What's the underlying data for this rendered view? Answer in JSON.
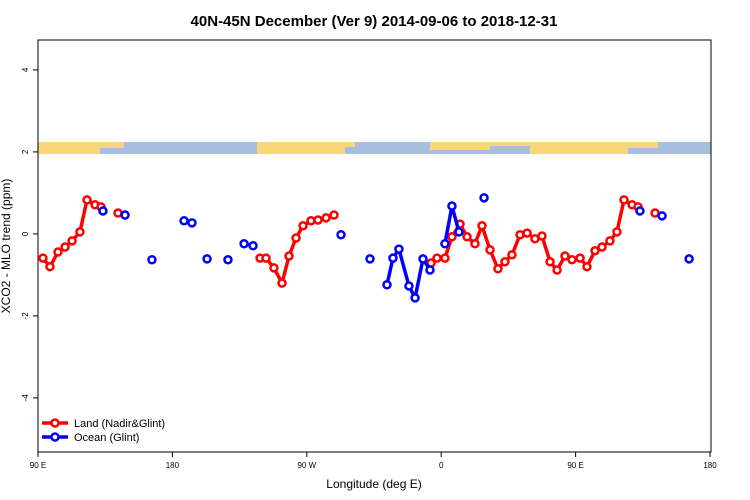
{
  "chart_data": {
    "type": "line",
    "title": "40N-45N December (Ver 9)   2014-09-06 to 2018-12-31",
    "x_label": "Longitude (deg E)",
    "y_label": "XCO2 - MLO trend (ppm)",
    "xlim": [
      90,
      540
    ],
    "ylim": [
      -5.32,
      4.73
    ],
    "xticks": [
      {
        "value": 90,
        "label": "90 E"
      },
      {
        "value": 180,
        "label": "180"
      },
      {
        "value": 270,
        "label": "90 W"
      },
      {
        "value": 360,
        "label": "0"
      },
      {
        "value": 450,
        "label": "90 E"
      },
      {
        "value": 540,
        "label": "180"
      }
    ],
    "yticks": [
      -4,
      -2,
      0,
      2,
      4
    ],
    "legend": "bottom-left",
    "series": [
      {
        "name": "Land (Nadir&Glint)",
        "color": "#ff0000",
        "x": [
          93.3,
          98.0,
          103.4,
          108.1,
          112.8,
          118.1,
          122.8,
          128.2,
          132.2,
          null,
          143.6,
          null,
          238.7,
          242.7,
          248.0,
          253.4,
          258.1,
          262.8,
          267.5,
          272.8,
          277.5,
          282.9,
          288.2,
          null,
          353.2,
          357.2,
          362.5,
          367.2,
          372.6,
          377.3,
          382.6,
          387.3,
          392.7,
          398.0,
          402.7,
          407.4,
          412.8,
          417.5,
          422.8,
          427.5,
          432.9,
          437.6,
          442.9,
          447.6,
          453.0,
          457.6,
          463.0,
          467.7,
          473.0,
          477.7,
          482.4,
          487.8,
          491.8,
          null,
          503.2
        ],
        "values": [
          -0.59,
          -0.8,
          -0.44,
          -0.32,
          -0.17,
          0.05,
          0.83,
          0.71,
          0.66,
          null,
          0.51,
          null,
          -0.59,
          -0.59,
          -0.83,
          -1.2,
          -0.54,
          -0.1,
          0.2,
          0.32,
          0.34,
          0.39,
          0.46,
          null,
          -0.71,
          -0.59,
          -0.59,
          -0.07,
          0.24,
          -0.07,
          -0.24,
          0.2,
          -0.39,
          -0.85,
          -0.68,
          -0.51,
          -0.02,
          0.02,
          -0.12,
          -0.05,
          -0.68,
          -0.88,
          -0.54,
          -0.63,
          -0.59,
          -0.8,
          -0.41,
          -0.32,
          -0.17,
          0.05,
          0.83,
          0.71,
          0.66,
          null,
          0.51
        ]
      },
      {
        "name": "Ocean (Glint)",
        "color": "#0000ff",
        "x": [
          133.5,
          null,
          148.3,
          null,
          166.3,
          null,
          187.8,
          null,
          193.1,
          null,
          203.2,
          null,
          217.2,
          null,
          228.0,
          null,
          234.0,
          null,
          292.9,
          null,
          312.3,
          null,
          323.7,
          327.7,
          331.7,
          338.4,
          342.5,
          347.8,
          352.5,
          null,
          362.5,
          367.2,
          371.9,
          null,
          388.7,
          null,
          493.1,
          null,
          507.9,
          null,
          526.0
        ],
        "values": [
          0.56,
          null,
          0.46,
          null,
          -0.63,
          null,
          0.32,
          null,
          0.27,
          null,
          -0.61,
          null,
          -0.63,
          null,
          -0.24,
          null,
          -0.29,
          null,
          -0.02,
          null,
          -0.61,
          null,
          -1.24,
          -0.59,
          -0.37,
          -1.27,
          -1.56,
          -0.61,
          -0.88,
          null,
          -0.24,
          0.68,
          0.05,
          null,
          0.88,
          null,
          0.56,
          null,
          0.44,
          null,
          -0.61
        ]
      }
    ]
  }
}
